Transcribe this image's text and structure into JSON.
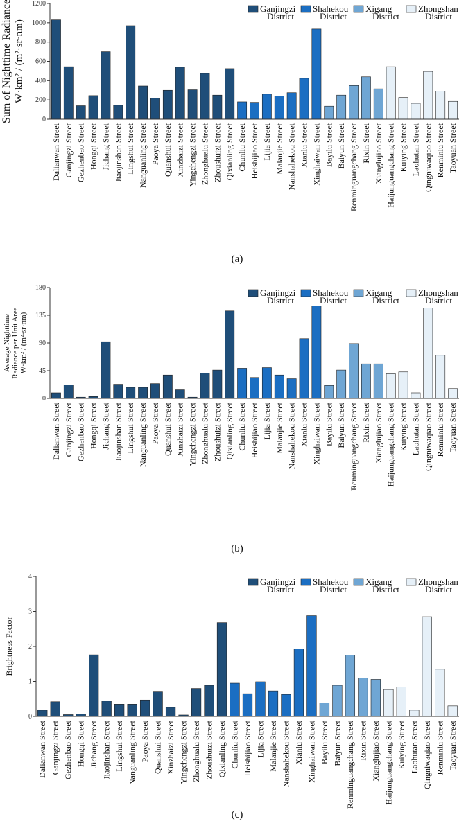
{
  "chart_data": [
    {
      "type": "bar",
      "caption": "(a)",
      "ylabel": [
        "Sum of Nighttime Radiance",
        "W·km² / (m²·sr·nm)"
      ],
      "categories": [
        "Dalianwan Street",
        "Ganjingzi Street",
        "Gezhenbao Street",
        "Hongqi Street",
        "Jichang Street",
        "Jiaojinshan Street",
        "Lingshui Street",
        "Nanguanling Street",
        "Paoya Street",
        "Quanshui Street",
        "Xinzhaizi Street",
        "Yingchengzi Street",
        "Zhonghualu Street",
        "Zhoushuizi Street",
        "Qixianling Street",
        "Chunliu Street",
        "Heishijiao Street",
        "Lijia Street",
        "Malanjie Street",
        "Nanshahekou Street",
        "Xianlu Street",
        "Xinghaiwan Street",
        "Bayilu Street",
        "Baiyun Street",
        "Renminguangchang Street",
        "Rixin Street",
        "Xianglujiao Street",
        "Haijunguangchang Street",
        "Kuiying Street",
        "Laohutan Street",
        "Qingniwaqiao Street",
        "Renminlu Street",
        "Taoyuan Street"
      ],
      "series": [
        {
          "name": "Ganjingzi District",
          "color": "#1f4e79",
          "values": [
            1030,
            545,
            140,
            245,
            700,
            145,
            970,
            345,
            220,
            300,
            540,
            305,
            475,
            250,
            525,
            null,
            null,
            null,
            null,
            null,
            null,
            null,
            null,
            null,
            null,
            null,
            null,
            null,
            null,
            null,
            null,
            null,
            null
          ]
        },
        {
          "name": "Shahekou District",
          "color": "#1b6ec2",
          "values": [
            null,
            null,
            null,
            null,
            null,
            null,
            null,
            null,
            null,
            null,
            null,
            null,
            null,
            null,
            null,
            180,
            175,
            260,
            240,
            275,
            425,
            935,
            null,
            null,
            null,
            null,
            null,
            null,
            null,
            null,
            null,
            null,
            null
          ]
        },
        {
          "name": "Xigang District",
          "color": "#6fa6d4",
          "values": [
            null,
            null,
            null,
            null,
            null,
            null,
            null,
            null,
            null,
            null,
            null,
            null,
            null,
            null,
            null,
            null,
            null,
            null,
            null,
            null,
            null,
            null,
            135,
            250,
            350,
            440,
            315,
            null,
            null,
            null,
            null,
            null,
            null
          ]
        },
        {
          "name": "Zhongshan District",
          "color": "#e6f0f8",
          "values": [
            null,
            null,
            null,
            null,
            null,
            null,
            null,
            null,
            null,
            null,
            null,
            null,
            null,
            null,
            null,
            null,
            null,
            null,
            null,
            null,
            null,
            null,
            null,
            null,
            null,
            null,
            null,
            545,
            225,
            165,
            495,
            290,
            185
          ]
        }
      ],
      "ylim": [
        0,
        1200
      ],
      "yticks": [
        0,
        200,
        400,
        600,
        800,
        1000,
        1200
      ]
    },
    {
      "type": "bar",
      "caption": "(b)",
      "ylabel": [
        "Average Nighttime",
        "Radiance per Unit Area",
        "W·km² / (m²·sr·nm)"
      ],
      "categories": [
        "Dalianwan Street",
        "Ganjingzi Street",
        "Gezhenbao Street",
        "Hongqi Street",
        "Jichang Street",
        "Jiaojinshan Street",
        "Lingshui Street",
        "Nanguanling Street",
        "Paoya Street",
        "Quanshui Street",
        "Xinzhaizi Street",
        "Yingchengzi Street",
        "Zhonghualu Street",
        "Zhoushuizi Street",
        "Qixianling Street",
        "Chunliu Street",
        "Heishijiao Street",
        "Lijia Street",
        "Malanjie Street",
        "Nanshahekou Street",
        "Xianlu Street",
        "Xinghaiwan Street",
        "Bayilu Street",
        "Baiyun Street",
        "Renminguangchang Street",
        "Rixin Street",
        "Xianglujiao Street",
        "Haijunguangchang Street",
        "Kuiying Street",
        "Laohutan Street",
        "Qingniwaqiao Street",
        "Renminlu Street",
        "Taoyuan Street"
      ],
      "series": [
        {
          "name": "Ganjingzi District",
          "color": "#1f4e79",
          "values": [
            9,
            22,
            2,
            3,
            92,
            23,
            18,
            18,
            24,
            38,
            14,
            2,
            41,
            46,
            142,
            null,
            null,
            null,
            null,
            null,
            null,
            null,
            null,
            null,
            null,
            null,
            null,
            null,
            null,
            null,
            null,
            null,
            null
          ]
        },
        {
          "name": "Shahekou District",
          "color": "#1b6ec2",
          "values": [
            null,
            null,
            null,
            null,
            null,
            null,
            null,
            null,
            null,
            null,
            null,
            null,
            null,
            null,
            null,
            49,
            34,
            50,
            38,
            32,
            97,
            150,
            null,
            null,
            null,
            null,
            null,
            null,
            null,
            null,
            null,
            null,
            null
          ]
        },
        {
          "name": "Xigang District",
          "color": "#6fa6d4",
          "values": [
            null,
            null,
            null,
            null,
            null,
            null,
            null,
            null,
            null,
            null,
            null,
            null,
            null,
            null,
            null,
            null,
            null,
            null,
            null,
            null,
            null,
            null,
            21,
            46,
            89,
            56,
            56,
            null,
            null,
            null,
            null,
            null,
            null
          ]
        },
        {
          "name": "Zhongshan District",
          "color": "#e6f0f8",
          "values": [
            null,
            null,
            null,
            null,
            null,
            null,
            null,
            null,
            null,
            null,
            null,
            null,
            null,
            null,
            null,
            null,
            null,
            null,
            null,
            null,
            null,
            null,
            null,
            null,
            null,
            null,
            null,
            40,
            43,
            9,
            147,
            70,
            16
          ]
        }
      ],
      "ylim": [
        0,
        180
      ],
      "yticks": [
        0,
        45,
        90,
        135,
        180
      ]
    },
    {
      "type": "bar",
      "caption": "(c)",
      "ylabel": [
        "Brightness Factor"
      ],
      "categories": [
        "Dalianwan Street",
        "Ganjingzi Street",
        "Gezhenbao Street",
        "Hongqi Street",
        "Jichang Street",
        "Jiaojinshan Street",
        "Lingshui Street",
        "Nanguanling Street",
        "Paoya Street",
        "Quanshui Street",
        "Xinzhaizi Street",
        "Yingchengzi Street",
        "Zhonghualu Street",
        "Zhoushuizi Street",
        "Qixianling Street",
        "Chunliu Street",
        "Heishijiao Street",
        "Lijia Street",
        "Malanjie Street",
        "Nanshahekou Street",
        "Xianlu Street",
        "Xinghaiwan Street",
        "Bayilu Street",
        "Baiyun Street",
        "Renminguangchang Street",
        "Rixin Street",
        "Xianglujiao Street",
        "Haijunguangchang Street",
        "Kuiying Street",
        "Laohutan Street",
        "Qingniwaqiao Street",
        "Renminlu Street",
        "Taoyuan Street"
      ],
      "series": [
        {
          "name": "Ganjingzi District",
          "color": "#1f4e79",
          "values": [
            0.18,
            0.42,
            0.05,
            0.07,
            1.76,
            0.44,
            0.35,
            0.35,
            0.47,
            0.72,
            0.26,
            0.04,
            0.8,
            0.89,
            2.68,
            null,
            null,
            null,
            null,
            null,
            null,
            null,
            null,
            null,
            null,
            null,
            null,
            null,
            null,
            null,
            null,
            null,
            null
          ]
        },
        {
          "name": "Shahekou District",
          "color": "#1b6ec2",
          "values": [
            null,
            null,
            null,
            null,
            null,
            null,
            null,
            null,
            null,
            null,
            null,
            null,
            null,
            null,
            null,
            0.95,
            0.65,
            0.99,
            0.73,
            0.63,
            1.93,
            2.88,
            null,
            null,
            null,
            null,
            null,
            null,
            null,
            null,
            null,
            null,
            null
          ]
        },
        {
          "name": "Xigang District",
          "color": "#6fa6d4",
          "values": [
            null,
            null,
            null,
            null,
            null,
            null,
            null,
            null,
            null,
            null,
            null,
            null,
            null,
            null,
            null,
            null,
            null,
            null,
            null,
            null,
            null,
            null,
            0.39,
            0.89,
            1.75,
            1.1,
            1.06,
            null,
            null,
            null,
            null,
            null,
            null
          ]
        },
        {
          "name": "Zhongshan District",
          "color": "#e6f0f8",
          "values": [
            null,
            null,
            null,
            null,
            null,
            null,
            null,
            null,
            null,
            null,
            null,
            null,
            null,
            null,
            null,
            null,
            null,
            null,
            null,
            null,
            null,
            null,
            null,
            null,
            null,
            null,
            null,
            0.77,
            0.84,
            0.18,
            2.85,
            1.35,
            0.3
          ]
        }
      ],
      "ylim": [
        0,
        4
      ],
      "yticks": [
        0,
        1,
        2,
        3,
        4
      ]
    }
  ]
}
